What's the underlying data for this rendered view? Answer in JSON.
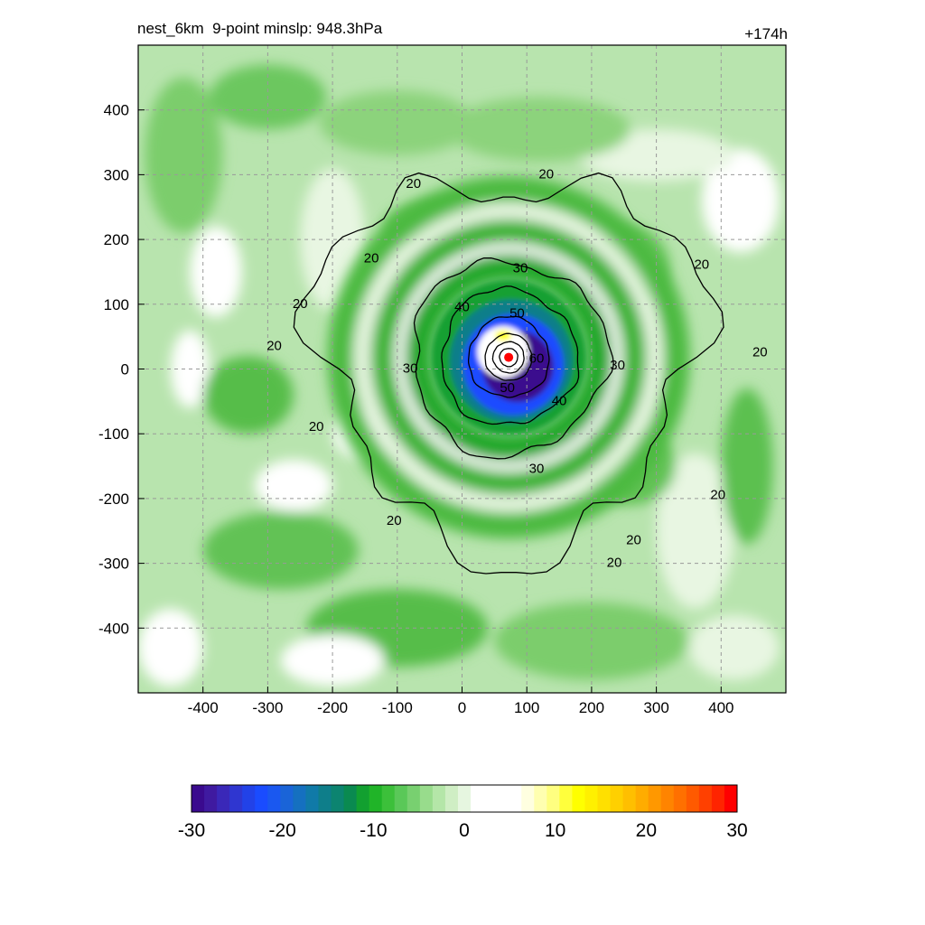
{
  "header": {
    "title": "nest_6km  9-point minslp: 948.3hPa",
    "forecast_hour": "+174h"
  },
  "chart_data": {
    "type": "heatmap",
    "title": "nest_6km  9-point minslp: 948.3hPa",
    "annotation_right": "+174h",
    "xlim": [
      -500,
      500
    ],
    "ylim": [
      -500,
      500
    ],
    "x_ticks": [
      -400,
      -300,
      -200,
      -100,
      0,
      100,
      200,
      300,
      400
    ],
    "y_ticks": [
      400,
      300,
      200,
      100,
      0,
      -100,
      -200,
      -300,
      -400
    ],
    "grid": true,
    "grid_style": "dashed",
    "storm_center": {
      "x": 72,
      "y": 18,
      "marker": "red-dot"
    },
    "contours": [
      {
        "label": "20",
        "radius": 290,
        "wobble": 0.12
      },
      {
        "label": "30",
        "radius": 150,
        "wobble": 0.05
      },
      {
        "label": "40",
        "radius": 105,
        "wobble": 0.04
      },
      {
        "label": "50",
        "radius": 62,
        "wobble": 0.03
      },
      {
        "label": "60",
        "radius": 36,
        "wobble": 0.02
      },
      {
        "label": "",
        "radius": 24,
        "wobble": 0.02
      },
      {
        "label": "",
        "radius": 14,
        "wobble": 0.02
      }
    ],
    "contour_labels": [
      {
        "text": "20",
        "x": -75,
        "y": 285
      },
      {
        "text": "20",
        "x": 130,
        "y": 300
      },
      {
        "text": "20",
        "x": -140,
        "y": 170
      },
      {
        "text": "20",
        "x": -250,
        "y": 100
      },
      {
        "text": "20",
        "x": -290,
        "y": 35
      },
      {
        "text": "20",
        "x": -225,
        "y": -90
      },
      {
        "text": "20",
        "x": -105,
        "y": -235
      },
      {
        "text": "20",
        "x": 370,
        "y": 160
      },
      {
        "text": "20",
        "x": 460,
        "y": 25
      },
      {
        "text": "20",
        "x": 395,
        "y": -195
      },
      {
        "text": "20",
        "x": 265,
        "y": -265
      },
      {
        "text": "20",
        "x": 235,
        "y": -300
      },
      {
        "text": "30",
        "x": 90,
        "y": 155
      },
      {
        "text": "30",
        "x": -80,
        "y": 0
      },
      {
        "text": "30",
        "x": 240,
        "y": 5
      },
      {
        "text": "30",
        "x": 115,
        "y": -155
      },
      {
        "text": "40",
        "x": 0,
        "y": 95
      },
      {
        "text": "40",
        "x": 150,
        "y": -50
      },
      {
        "text": "50",
        "x": 85,
        "y": 85
      },
      {
        "text": "50",
        "x": 70,
        "y": -30
      },
      {
        "text": "60",
        "x": 115,
        "y": 15
      }
    ],
    "colorbar": {
      "min": -30,
      "max": 30,
      "tick_labels": [
        "-30",
        "-20",
        "-10",
        "0",
        "10",
        "20",
        "30"
      ],
      "colors": [
        "#3a0a8e",
        "#3f1aa0",
        "#3a28b8",
        "#2f36d0",
        "#2242e8",
        "#1a4cff",
        "#1a58f0",
        "#1a64d8",
        "#1570c0",
        "#107aa8",
        "#0e7e8a",
        "#0c8470",
        "#0a8a50",
        "#12a030",
        "#20b428",
        "#3cc03a",
        "#5ac858",
        "#78d070",
        "#98dc8c",
        "#b4e6a8",
        "#cfeec4",
        "#e6f6e0",
        "#ffffff",
        "#ffffff",
        "#ffffff",
        "#ffffff",
        "#ffffe0",
        "#ffffb0",
        "#ffff80",
        "#ffff3c",
        "#ffff00",
        "#fff000",
        "#ffe000",
        "#ffd000",
        "#ffbf00",
        "#ffac00",
        "#ff9800",
        "#ff8400",
        "#ff7000",
        "#ff5a00",
        "#ff4000",
        "#ff2400",
        "#ff0000"
      ]
    }
  }
}
